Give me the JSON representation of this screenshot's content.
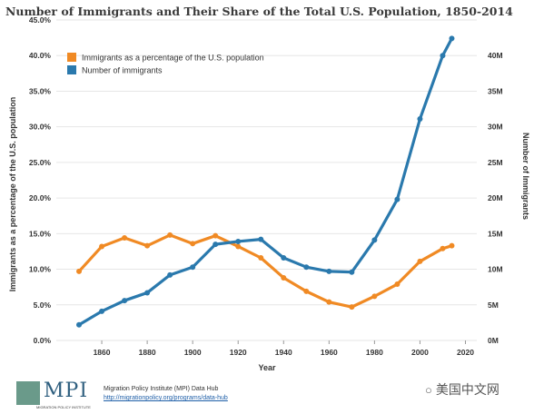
{
  "title": "Number of Immigrants and Their Share of the Total U.S. Population, 1850-2014",
  "colors": {
    "percent": "#f08a24",
    "number": "#2a79ad"
  },
  "chart_data": {
    "type": "line",
    "xlabel": "Year",
    "ylabel_left": "Immigrants as a percentage of the U.S. population",
    "ylabel_right": "Number of Immigrants",
    "xlim": [
      1840,
      2025
    ],
    "xticks": [
      "1860",
      "1880",
      "1900",
      "1920",
      "1940",
      "1960",
      "1980",
      "2000",
      "2020"
    ],
    "ylim_left": [
      0,
      45
    ],
    "yticks_left": [
      "0.0%",
      "5.0%",
      "10.0%",
      "15.0%",
      "20.0%",
      "25.0%",
      "30.0%",
      "35.0%",
      "40.0%",
      "45.0%"
    ],
    "ylim_right": [
      0,
      45
    ],
    "yticks_right": [
      "0M",
      "5M",
      "10M",
      "15M",
      "20M",
      "25M",
      "30M",
      "35M",
      "40M"
    ],
    "legend_position": "top-left",
    "x": [
      1850,
      1860,
      1870,
      1880,
      1890,
      1900,
      1910,
      1920,
      1930,
      1940,
      1950,
      1960,
      1970,
      1980,
      1990,
      2000,
      2010,
      2014
    ],
    "series": [
      {
        "name": "Immigrants as a percentage of the U.S. population",
        "axis": "left",
        "color": "#f08a24",
        "values": [
          9.7,
          13.2,
          14.4,
          13.3,
          14.8,
          13.6,
          14.7,
          13.2,
          11.6,
          8.8,
          6.9,
          5.4,
          4.7,
          6.2,
          7.9,
          11.1,
          12.9,
          13.3
        ]
      },
      {
        "name": "Number of immigrants",
        "axis": "right",
        "color": "#2a79ad",
        "values": [
          2.2,
          4.1,
          5.6,
          6.7,
          9.2,
          10.3,
          13.5,
          13.9,
          14.2,
          11.6,
          10.3,
          9.7,
          9.6,
          14.1,
          19.8,
          31.1,
          40.0,
          42.4
        ]
      }
    ]
  },
  "footer": {
    "logo_text": "MPI",
    "logo_tagline": "MIGRATION POLICY INSTITUTE",
    "source_line": "Migration Policy Institute (MPI) Data Hub",
    "source_url": "http://migrationpolicy.org/programs/data-hub"
  },
  "watermark": {
    "icon": "wechat-icon",
    "text": "美国中文网"
  }
}
